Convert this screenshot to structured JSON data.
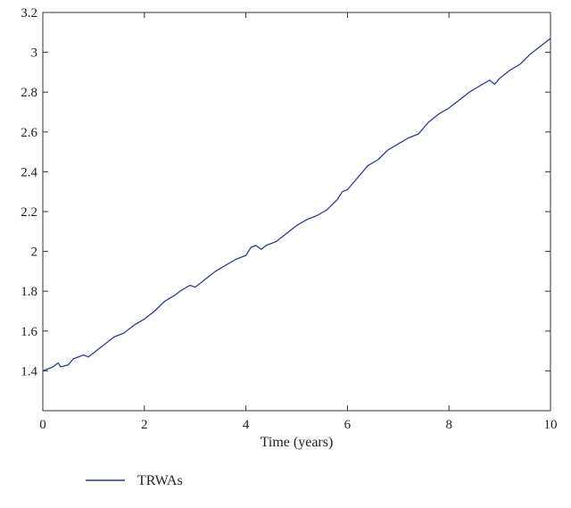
{
  "chart_data": {
    "type": "line",
    "title": "",
    "xlabel": "Time (years)",
    "ylabel": "",
    "xlim": [
      0,
      10
    ],
    "ylim": [
      1.2,
      3.2
    ],
    "xticks": [
      0,
      2,
      4,
      6,
      8,
      10
    ],
    "yticks": [
      1.4,
      1.6,
      1.8,
      2,
      2.2,
      2.4,
      2.6,
      2.8,
      3,
      3.2
    ],
    "xtick_labels": [
      "0",
      "2",
      "4",
      "6",
      "8",
      "10"
    ],
    "ytick_labels": [
      "1.4",
      "1.6",
      "1.8",
      "2",
      "2.2",
      "2.4",
      "2.6",
      "2.8",
      "3",
      "3.2"
    ],
    "grid": false,
    "legend_position": "bottom-left, below axes",
    "series": [
      {
        "name": "TRWAs",
        "color": "#2b3f8c",
        "x": [
          0,
          0.2,
          0.3,
          0.35,
          0.5,
          0.6,
          0.8,
          0.9,
          1.0,
          1.2,
          1.4,
          1.6,
          1.8,
          2.0,
          2.2,
          2.4,
          2.6,
          2.7,
          2.9,
          3.0,
          3.2,
          3.4,
          3.6,
          3.8,
          4.0,
          4.1,
          4.2,
          4.3,
          4.4,
          4.6,
          4.8,
          5.0,
          5.2,
          5.4,
          5.6,
          5.8,
          5.9,
          6.0,
          6.2,
          6.4,
          6.6,
          6.8,
          7.0,
          7.2,
          7.4,
          7.6,
          7.8,
          8.0,
          8.2,
          8.4,
          8.6,
          8.8,
          8.9,
          9.0,
          9.2,
          9.4,
          9.6,
          9.8,
          10.0
        ],
        "y": [
          1.4,
          1.42,
          1.44,
          1.42,
          1.43,
          1.46,
          1.48,
          1.47,
          1.49,
          1.53,
          1.57,
          1.59,
          1.63,
          1.66,
          1.7,
          1.75,
          1.78,
          1.8,
          1.83,
          1.82,
          1.86,
          1.9,
          1.93,
          1.96,
          1.98,
          2.02,
          2.03,
          2.01,
          2.03,
          2.05,
          2.09,
          2.13,
          2.16,
          2.18,
          2.21,
          2.26,
          2.3,
          2.31,
          2.37,
          2.43,
          2.46,
          2.51,
          2.54,
          2.57,
          2.59,
          2.65,
          2.69,
          2.72,
          2.76,
          2.8,
          2.83,
          2.86,
          2.84,
          2.87,
          2.91,
          2.94,
          2.99,
          3.03,
          3.07
        ]
      }
    ]
  }
}
